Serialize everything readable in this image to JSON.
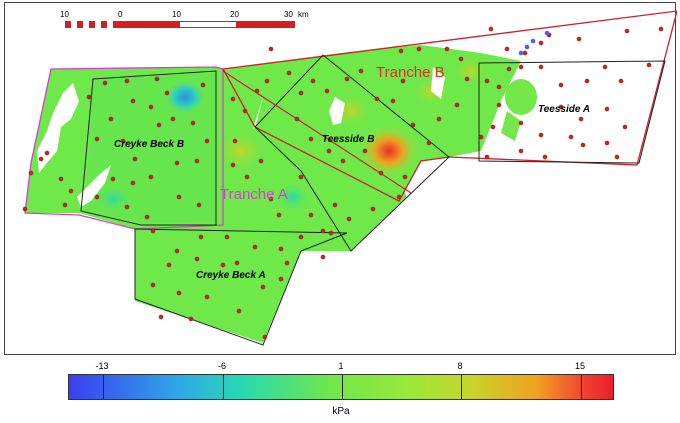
{
  "scale_bar": {
    "labels": [
      "10",
      "0",
      "10",
      "20",
      "30"
    ],
    "unit": "km"
  },
  "zones": {
    "creyke_beck_a": "Creyke Beck A",
    "creyke_beck_b": "Creyke Beck B",
    "teesside_a": "Teesside A",
    "teesside_b": "Teesside B"
  },
  "tranches": {
    "a": "Tranche A",
    "b": "Tranche B"
  },
  "colorbar": {
    "min": -15,
    "max": 17,
    "ticks": [
      "-13",
      "-6",
      "1",
      "8",
      "15"
    ],
    "tick_values": [
      -13,
      -6,
      1,
      8,
      15
    ],
    "unit": "kPa"
  },
  "colors": {
    "tranche_a_boundary": "#d43fd4",
    "tranche_b_boundary": "#d0202a",
    "sample_point": "#c0281e",
    "field_base": "#6fe84a"
  }
}
